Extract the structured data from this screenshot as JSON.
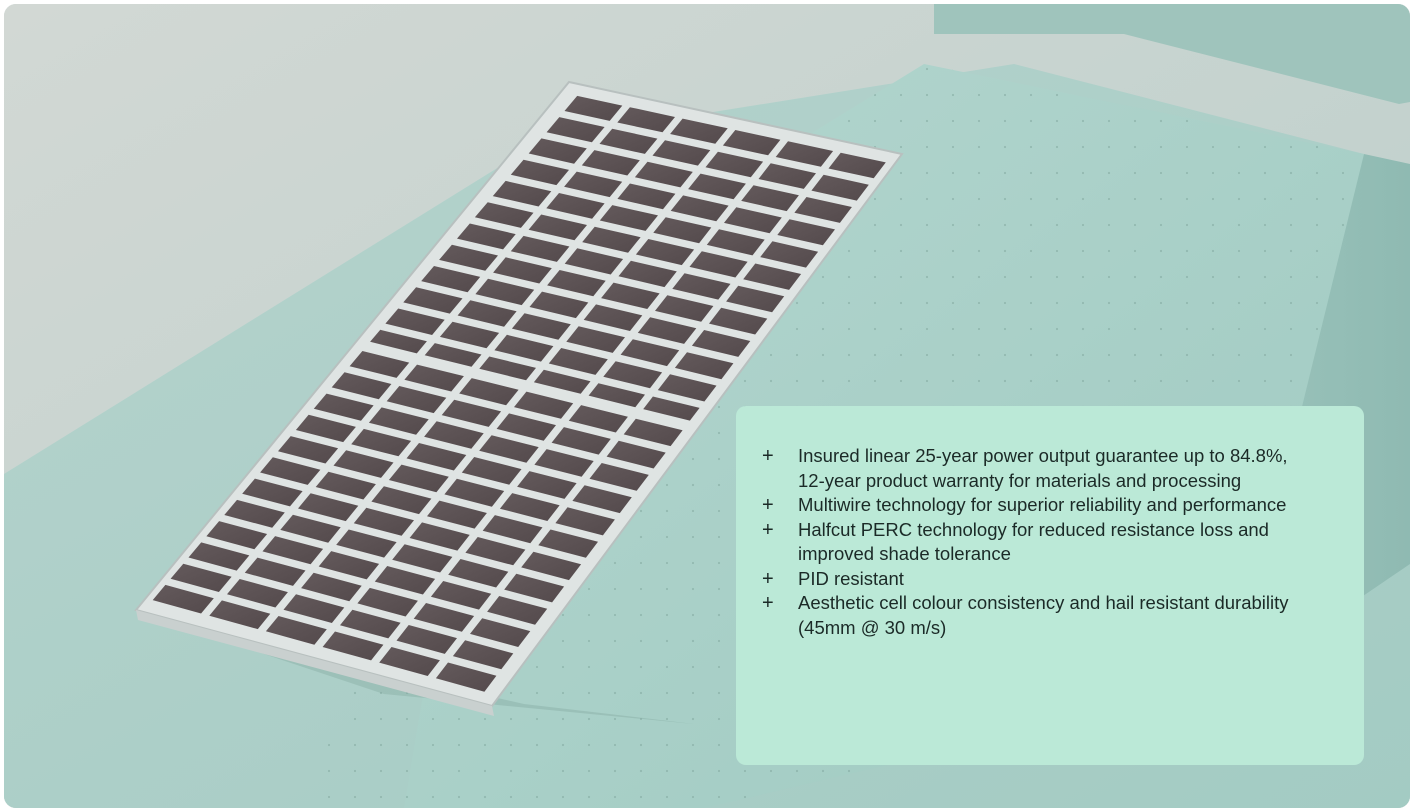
{
  "hero": {
    "image_subject": "solar-panel",
    "colors": {
      "background": "#c7d3cf",
      "platform": "#a7cfc7",
      "panel_cell": "#5b5052",
      "panel_frame": "#dfe4e3",
      "card": "#bbe9d7"
    }
  },
  "features": {
    "bullet_icon": "plus-icon",
    "items": [
      "Insured linear 25-year power output guarantee up to 84.8%,  12-year product warranty for materials and processing",
      "Multiwire technology for superior reliability and performance",
      "Halfcut PERC technology for reduced resistance loss and improved shade tolerance",
      "PID resistant",
      "Aesthetic cell colour consistency and hail resistant durability (45mm @ 30 m/s)"
    ]
  }
}
